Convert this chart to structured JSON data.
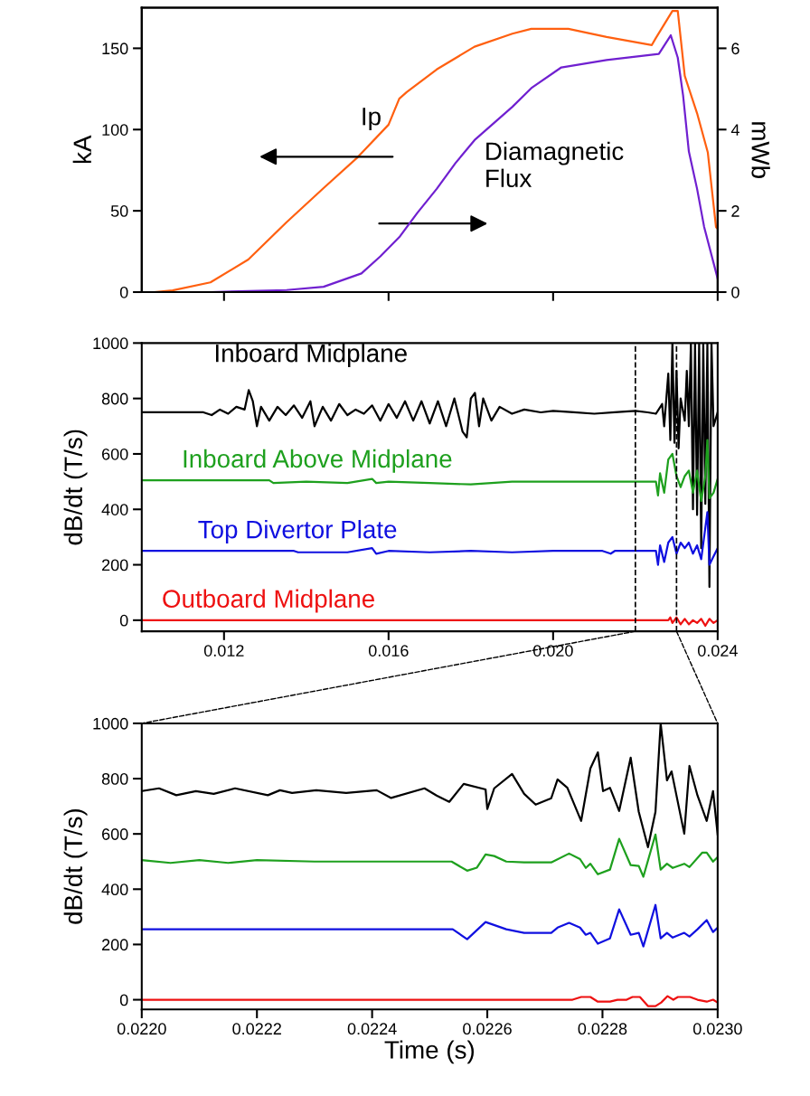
{
  "chart_data": [
    {
      "type": "line",
      "ylabel": "kA",
      "y2label": "mWb",
      "xlim": [
        0.01,
        0.024
      ],
      "xticks": [
        {
          "value": 0.012,
          "label": null
        },
        {
          "value": 0.016,
          "label": null
        },
        {
          "value": 0.02,
          "label": null
        },
        {
          "value": 0.024,
          "label": null
        }
      ],
      "ylim": [
        0,
        175
      ],
      "yticks": [
        0,
        50,
        100,
        150
      ],
      "y2lim": [
        0,
        7
      ],
      "y2ticks": [
        0,
        2,
        4,
        6
      ],
      "tick_labels": "y",
      "grid": false,
      "legend": false,
      "series": [
        {
          "name": "Ip",
          "color": "#ff6010",
          "x": [
            0.0103,
            0.01075,
            0.01167,
            0.01259,
            0.01352,
            0.01442,
            0.01525,
            0.016,
            0.01626,
            0.01644,
            0.01717,
            0.01809,
            0.01901,
            0.01947,
            0.02037,
            0.0213,
            0.0224,
            0.02249,
            0.0229,
            0.02303,
            0.0232,
            0.0235,
            0.02376,
            0.02396,
            0.024
          ],
          "values": [
            0,
            1,
            6,
            20,
            43,
            64,
            83,
            103,
            119,
            123,
            137,
            151,
            159,
            162,
            162,
            157,
            152,
            156,
            173,
            173,
            133,
            110,
            86,
            40,
            39
          ]
        },
        {
          "name": "Diamagnetic\nFlux",
          "color": "#7020d0",
          "axis": "y2",
          "x": [
            0.01167,
            0.01352,
            0.01442,
            0.01534,
            0.0158,
            0.01626,
            0.0167,
            0.01717,
            0.01763,
            0.01809,
            0.01901,
            0.01947,
            0.0202,
            0.0213,
            0.02257,
            0.02286,
            0.02303,
            0.02316,
            0.0233,
            0.0235,
            0.02367,
            0.024
          ],
          "values": [
            0,
            0.05,
            0.13,
            0.46,
            0.88,
            1.35,
            1.95,
            2.54,
            3.18,
            3.74,
            4.56,
            5.02,
            5.53,
            5.71,
            5.86,
            6.32,
            5.77,
            4.84,
            3.46,
            2.54,
            1.61,
            0.33
          ]
        }
      ]
    },
    {
      "type": "line",
      "ylabel": "dB/dt (T/s)",
      "xlim": [
        0.01,
        0.024
      ],
      "xticks": [
        0.012,
        0.016,
        {
          "value": 0.02,
          "label": "0.020"
        },
        0.024
      ],
      "ylim": [
        -40,
        1000
      ],
      "yticks": [
        0,
        200,
        400,
        600,
        800,
        1000
      ],
      "grid": false,
      "legend": false,
      "ref_lines": [
        {
          "axis": "x",
          "value": 0.022,
          "color": "#000000",
          "line_style": "dashed"
        },
        {
          "axis": "x",
          "value": 0.023,
          "color": "#000000",
          "line_style": "dashed"
        }
      ],
      "series": [
        {
          "name": "Inboard Midplane",
          "color": "#000000",
          "x": [
            0.01,
            0.0115,
            0.0117,
            0.0119,
            0.0121,
            0.0123,
            0.0125,
            0.0126,
            0.0127,
            0.0128,
            0.0129,
            0.0131,
            0.0133,
            0.0135,
            0.0137,
            0.0139,
            0.0141,
            0.0142,
            0.0144,
            0.0146,
            0.0148,
            0.015,
            0.0152,
            0.0154,
            0.0156,
            0.0158,
            0.016,
            0.0162,
            0.0164,
            0.0166,
            0.0168,
            0.017,
            0.0172,
            0.0174,
            0.0176,
            0.0178,
            0.0179,
            0.018,
            0.0181,
            0.0182,
            0.0183,
            0.0185,
            0.0187,
            0.019,
            0.0193,
            0.0197,
            0.02,
            0.0205,
            0.021,
            0.0215,
            0.022,
            0.0223,
            0.0225,
            0.02265,
            0.0227,
            0.0228,
            0.02285,
            0.0229,
            0.02295,
            0.023,
            0.02305,
            0.0231,
            0.0232,
            0.02325,
            0.0233,
            0.02335,
            0.0234,
            0.02345,
            0.0235,
            0.02355,
            0.0236,
            0.02365,
            0.0237,
            0.02375,
            0.0238,
            0.02385,
            0.0239,
            0.024
          ],
          "values": [
            750,
            750,
            740,
            760,
            745,
            770,
            760,
            830,
            790,
            700,
            770,
            720,
            770,
            740,
            775,
            730,
            790,
            700,
            770,
            720,
            780,
            740,
            760,
            745,
            775,
            720,
            780,
            730,
            790,
            720,
            790,
            710,
            790,
            700,
            800,
            680,
            660,
            800,
            820,
            700,
            800,
            720,
            770,
            745,
            760,
            750,
            755,
            750,
            745,
            750,
            755,
            750,
            745,
            780,
            700,
            890,
            650,
            1000,
            640,
            900,
            620,
            800,
            720,
            900,
            700,
            1000,
            400,
            1000,
            380,
            1000,
            260,
            1000,
            420,
            1000,
            120,
            1000,
            700,
            750
          ]
        },
        {
          "name": "Inboard Above Midplane",
          "color": "#1ea01e",
          "x": [
            0.01,
            0.0131,
            0.0132,
            0.014,
            0.015,
            0.0156,
            0.0157,
            0.016,
            0.017,
            0.018,
            0.019,
            0.02,
            0.021,
            0.022,
            0.0225,
            0.02255,
            0.0226,
            0.0227,
            0.0228,
            0.0229,
            0.023,
            0.0231,
            0.0232,
            0.0233,
            0.0234,
            0.0235,
            0.0236,
            0.0237,
            0.02375,
            0.0238,
            0.0239,
            0.024
          ],
          "values": [
            505,
            505,
            495,
            500,
            495,
            510,
            495,
            500,
            495,
            490,
            500,
            500,
            500,
            500,
            500,
            450,
            530,
            460,
            580,
            600,
            520,
            480,
            520,
            540,
            460,
            540,
            430,
            520,
            650,
            440,
            460,
            510
          ]
        },
        {
          "name": "Top Divertor Plate",
          "color": "#1010e0",
          "x": [
            0.01,
            0.0137,
            0.0138,
            0.015,
            0.0156,
            0.0157,
            0.016,
            0.017,
            0.018,
            0.019,
            0.02,
            0.0212,
            0.0214,
            0.0215,
            0.0225,
            0.02255,
            0.0226,
            0.0227,
            0.0228,
            0.0229,
            0.023,
            0.0231,
            0.0232,
            0.0233,
            0.0234,
            0.0235,
            0.0236,
            0.02375,
            0.0238,
            0.0239,
            0.024
          ],
          "values": [
            250,
            250,
            245,
            245,
            260,
            240,
            250,
            245,
            250,
            245,
            250,
            250,
            240,
            250,
            250,
            200,
            270,
            210,
            280,
            300,
            240,
            280,
            260,
            280,
            240,
            270,
            220,
            390,
            200,
            230,
            260
          ]
        },
        {
          "name": "Outboard Midplane",
          "color": "#ee1111",
          "x": [
            0.01,
            0.0228,
            0.02285,
            0.0229,
            0.023,
            0.0231,
            0.0232,
            0.0233,
            0.0234,
            0.0235,
            0.0236,
            0.0237,
            0.0238,
            0.0239,
            0.024
          ],
          "values": [
            0,
            0,
            10,
            -10,
            10,
            -15,
            5,
            -15,
            0,
            -10,
            5,
            -20,
            5,
            -10,
            0
          ]
        }
      ]
    },
    {
      "type": "line",
      "ylabel": "dB/dt (T/s)",
      "xlabel": "Time (s)",
      "xlim": [
        0.022,
        0.023
      ],
      "xticks": [
        {
          "value": 0.022,
          "label": "0.0220"
        },
        {
          "value": 0.0222,
          "label": "0.0222"
        },
        {
          "value": 0.0224,
          "label": "0.0224"
        },
        {
          "value": 0.0226,
          "label": "0.0226"
        },
        {
          "value": 0.0228,
          "label": "0.0228"
        },
        {
          "value": 0.023,
          "label": "0.0230"
        }
      ],
      "ylim": [
        -35,
        1000
      ],
      "yticks": [
        0,
        200,
        400,
        600,
        800,
        1000
      ],
      "grid": false,
      "legend": false,
      "series": [
        {
          "color": "#000000",
          "x": [
            0.022,
            0.02203,
            0.02206,
            0.022094,
            0.022125,
            0.022162,
            0.022219,
            0.02224,
            0.022261,
            0.022303,
            0.022355,
            0.022408,
            0.022433,
            0.022491,
            0.022512,
            0.022534,
            0.022559,
            0.022597,
            0.0226,
            0.022612,
            0.022643,
            0.022664,
            0.022684,
            0.022711,
            0.022722,
            0.022739,
            0.022763,
            0.022779,
            0.022792,
            0.022801,
            0.022813,
            0.022829,
            0.022849,
            0.022863,
            0.022879,
            0.022892,
            0.022901,
            0.022912,
            0.02292,
            0.022942,
            0.022951,
            0.022965,
            0.022981,
            0.022992,
            0.023
          ],
          "values": [
            755,
            765,
            740,
            755,
            745,
            765,
            740,
            758,
            748,
            758,
            748,
            758,
            730,
            765,
            739,
            716,
            781,
            761,
            690,
            765,
            817,
            745,
            706,
            729,
            797,
            767,
            647,
            837,
            895,
            755,
            767,
            683,
            876,
            680,
            552,
            680,
            1000,
            794,
            826,
            601,
            846,
            739,
            647,
            755,
            598
          ]
        },
        {
          "color": "#1ea01e",
          "x": [
            0.022,
            0.02205,
            0.0221,
            0.02215,
            0.0222,
            0.0223,
            0.0224,
            0.0225,
            0.022538,
            0.022565,
            0.022582,
            0.022597,
            0.022612,
            0.022633,
            0.022664,
            0.022711,
            0.022742,
            0.022761,
            0.022771,
            0.022779,
            0.022792,
            0.022813,
            0.022829,
            0.022849,
            0.022863,
            0.022871,
            0.022892,
            0.022901,
            0.022912,
            0.022922,
            0.022942,
            0.022951,
            0.022973,
            0.022981,
            0.022992,
            0.023
          ],
          "values": [
            505,
            495,
            505,
            495,
            505,
            500,
            500,
            500,
            500,
            467,
            478,
            526,
            520,
            500,
            497,
            497,
            529,
            509,
            477,
            492,
            454,
            471,
            582,
            487,
            484,
            445,
            598,
            471,
            492,
            477,
            492,
            480,
            532,
            532,
            500,
            516
          ]
        },
        {
          "color": "#1010e0",
          "x": [
            0.022,
            0.02254,
            0.022565,
            0.022597,
            0.022633,
            0.022664,
            0.022711,
            0.022722,
            0.022742,
            0.022761,
            0.022771,
            0.022779,
            0.022792,
            0.022813,
            0.022829,
            0.022849,
            0.022863,
            0.022871,
            0.022892,
            0.022901,
            0.022912,
            0.022922,
            0.022942,
            0.022951,
            0.022965,
            0.022981,
            0.022992,
            0.023
          ],
          "values": [
            255,
            255,
            219,
            281,
            255,
            242,
            242,
            261,
            278,
            261,
            235,
            242,
            203,
            222,
            327,
            235,
            242,
            193,
            343,
            222,
            242,
            225,
            242,
            229,
            255,
            288,
            245,
            261
          ]
        },
        {
          "color": "#ee1111",
          "x": [
            0.022,
            0.022748,
            0.022763,
            0.022779,
            0.022792,
            0.022813,
            0.022826,
            0.022842,
            0.022852,
            0.022865,
            0.022879,
            0.022892,
            0.022902,
            0.022913,
            0.022923,
            0.022931,
            0.022952,
            0.022965,
            0.022981,
            0.022992,
            0.023
          ],
          "values": [
            0,
            0,
            10,
            10,
            -7,
            -7,
            0,
            0,
            10,
            10,
            -23,
            -23,
            -10,
            13,
            0,
            10,
            10,
            0,
            -7,
            0,
            -10
          ]
        }
      ]
    }
  ]
}
